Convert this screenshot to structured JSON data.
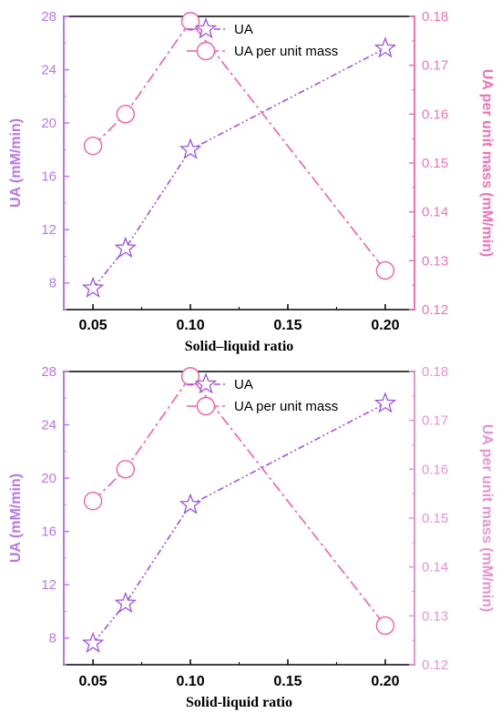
{
  "chart_data": [
    {
      "type": "line",
      "title": "",
      "xlabel": "Solid–liquid ratio",
      "ylabel": "UA (mM/min)",
      "y2label": "UA per unit mass (mM/min)",
      "xlim": [
        0.035,
        0.215
      ],
      "ylim": [
        6,
        28
      ],
      "y2lim": [
        0.12,
        0.18
      ],
      "xticks": [
        "0.05",
        "0.10",
        "0.15",
        "0.20"
      ],
      "xtick_values": [
        0.05,
        0.1,
        0.15,
        0.2
      ],
      "yticks": [
        "8",
        "12",
        "16",
        "20",
        "24",
        "28"
      ],
      "ytick_values": [
        8,
        12,
        16,
        20,
        24,
        28
      ],
      "y2ticks": [
        "0.12",
        "0.13",
        "0.14",
        "0.15",
        "0.16",
        "0.17",
        "0.18"
      ],
      "y2tick_values": [
        0.12,
        0.13,
        0.14,
        0.15,
        0.16,
        0.17,
        0.18
      ],
      "grid": false,
      "legend_position": "top-center",
      "left_axis_color": "#b877e6",
      "right_axis_color": "#ef72b4",
      "series": [
        {
          "name": "UA",
          "axis": "left",
          "marker": "star",
          "color": "#9c52e0",
          "x": [
            0.05,
            0.0667,
            0.1,
            0.2
          ],
          "values": [
            7.6,
            10.6,
            18.0,
            25.6
          ]
        },
        {
          "name": "UA per unit mass",
          "axis": "right",
          "marker": "circle",
          "color": "#ee5fa8",
          "x": [
            0.05,
            0.0667,
            0.1,
            0.2
          ],
          "values": [
            0.1535,
            0.16,
            0.179,
            0.128
          ]
        }
      ]
    },
    {
      "type": "line",
      "title": "",
      "xlabel": "Solid-liquid ratio",
      "ylabel": "UA (mM/min)",
      "y2label": "UA per unit mass (mM/min)",
      "xlim": [
        0.035,
        0.215
      ],
      "ylim": [
        6,
        28
      ],
      "y2lim": [
        0.12,
        0.18
      ],
      "xticks": [
        "0.05",
        "0.10",
        "0.15",
        "0.20"
      ],
      "xtick_values": [
        0.05,
        0.1,
        0.15,
        0.2
      ],
      "yticks": [
        "8",
        "12",
        "16",
        "20",
        "24",
        "28"
      ],
      "ytick_values": [
        8,
        12,
        16,
        20,
        24,
        28
      ],
      "y2ticks": [
        "0.12",
        "0.13",
        "0.14",
        "0.15",
        "0.16",
        "0.17",
        "0.18"
      ],
      "y2tick_values": [
        0.12,
        0.13,
        0.14,
        0.15,
        0.16,
        0.17,
        0.18
      ],
      "grid": false,
      "legend_position": "top-center",
      "left_axis_color": "#b877e6",
      "right_axis_color": "#e693cf",
      "series": [
        {
          "name": "UA",
          "axis": "left",
          "marker": "star",
          "color": "#9c52e0",
          "x": [
            0.05,
            0.0667,
            0.1,
            0.2
          ],
          "values": [
            7.6,
            10.6,
            18.0,
            25.6
          ]
        },
        {
          "name": "UA per unit mass",
          "axis": "right",
          "marker": "circle",
          "color": "#ee5fa8",
          "x": [
            0.05,
            0.0667,
            0.1,
            0.2
          ],
          "values": [
            0.1535,
            0.16,
            0.179,
            0.128
          ]
        }
      ]
    }
  ]
}
